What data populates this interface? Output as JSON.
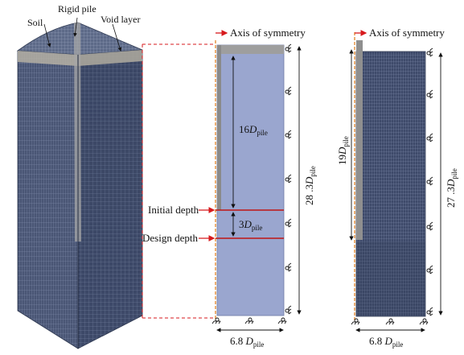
{
  "labels": {
    "soil": "Soil",
    "rigid_pile": "Rigid pile",
    "void_layer": "Void layer",
    "axis_sym_mid": "Axis of symmetry",
    "axis_sym_right": "Axis of symmetry",
    "initial_depth": "Initial depth",
    "design_depth": "Design depth"
  },
  "dimensions": {
    "mid_16": {
      "coef": "16",
      "sym": "D",
      "sub": "pile"
    },
    "mid_3": {
      "coef": "3",
      "sym": "D",
      "sub": "pile"
    },
    "mid_height": {
      "coef": "28 .3",
      "sym": "D",
      "sub": "pile"
    },
    "mid_width": {
      "coef": "6.8 ",
      "sym": "D",
      "sub": "pile"
    },
    "right_19": {
      "coef": "19",
      "sym": "D",
      "sub": "pile"
    },
    "right_height": {
      "coef": "27 .3",
      "sym": "D",
      "sub": "pile"
    },
    "right_width": {
      "coef": "6.8 ",
      "sym": "D",
      "sub": "pile"
    }
  },
  "colors": {
    "mesh_dark": "#3a4560",
    "mesh_line": "#6b7896",
    "soil_fill": "#9aa6cf",
    "pile_fill": "#9a9a9a",
    "red_dashed": "#d7191c",
    "orange_axis": "#e07b1a",
    "text": "#111111"
  }
}
